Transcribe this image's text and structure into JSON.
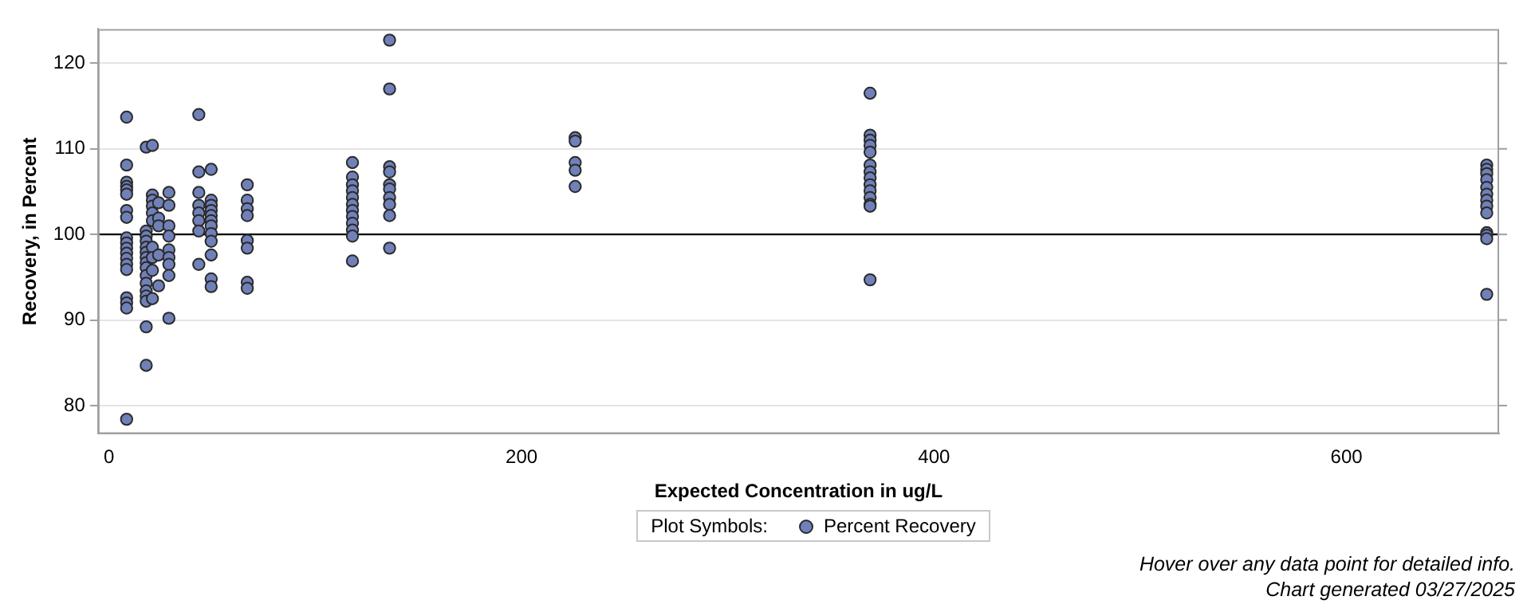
{
  "chart_data": {
    "type": "scatter",
    "xlabel": "Expected Concentration in ug/L",
    "ylabel": "Recovery, in Percent",
    "legend_title": "Plot Symbols:",
    "legend": "bottom",
    "grid": "y",
    "marker": "circle",
    "xlim": [
      -5.4,
      674
    ],
    "xticks": [
      0,
      200,
      400,
      600
    ],
    "ylim": [
      76.7,
      124
    ],
    "yticks": [
      80,
      90,
      100,
      110,
      120
    ],
    "ref_lines": [
      {
        "axis": "y",
        "value": 100,
        "label": null,
        "color": "#000000"
      }
    ],
    "annotations": [
      "Hover over any data point for detailed info.",
      "Chart generated 03/27/2025"
    ],
    "series": [
      {
        "name": "Percent Recovery",
        "color": "#7080b8",
        "x": [
          8.5,
          8.5,
          8.5,
          8.5,
          8.5,
          8.5,
          8.5,
          8.5,
          8.5,
          8.5,
          8.5,
          8.5,
          8.5,
          8.5,
          8.5,
          8.5,
          8.5,
          8.5,
          8.5,
          18,
          18,
          18,
          18,
          18,
          18,
          18,
          18,
          18,
          18,
          18,
          18,
          18,
          18,
          18,
          18,
          21,
          21,
          21,
          21,
          21,
          21,
          21,
          21,
          21,
          21,
          24,
          24,
          24,
          24,
          24,
          29,
          29,
          29,
          29,
          29,
          29,
          29,
          29,
          29,
          43.5,
          43.5,
          43.5,
          43.5,
          43.5,
          43.5,
          43.5,
          43.5,
          49.5,
          49.5,
          49.5,
          49.5,
          49.5,
          49.5,
          49.5,
          49.5,
          49.5,
          49.5,
          49.5,
          49.5,
          67,
          67,
          67,
          67,
          67,
          67,
          67,
          67,
          118,
          118,
          118,
          118,
          118,
          118,
          118,
          118,
          118,
          118,
          118,
          118,
          136,
          136,
          136,
          136,
          136,
          136,
          136,
          136,
          136,
          136,
          226,
          226,
          226,
          226,
          226,
          369,
          369,
          369,
          369,
          369,
          369,
          369,
          369,
          369,
          369,
          369,
          369,
          369,
          369,
          668,
          668,
          668,
          668,
          668,
          668,
          668,
          668,
          668,
          668,
          668,
          668,
          668
        ],
        "values": [
          113.7,
          108.1,
          106.1,
          105.6,
          105.2,
          104.7,
          102.8,
          102.0,
          99.6,
          99.0,
          98.4,
          97.8,
          97.2,
          96.5,
          95.9,
          92.6,
          92.0,
          91.4,
          78.4,
          110.2,
          100.4,
          99.8,
          99.2,
          98.5,
          97.9,
          97.3,
          96.7,
          96.1,
          95.2,
          94.3,
          93.4,
          92.8,
          92.2,
          89.2,
          84.7,
          110.4,
          104.6,
          104.0,
          103.3,
          102.5,
          101.6,
          98.5,
          97.3,
          95.8,
          92.5,
          103.7,
          101.9,
          101.0,
          97.6,
          94.0,
          104.9,
          103.4,
          101.0,
          99.8,
          98.2,
          97.3,
          96.5,
          95.2,
          90.2,
          114.0,
          107.3,
          104.9,
          103.4,
          102.5,
          101.6,
          100.4,
          96.5,
          107.6,
          104.0,
          103.4,
          102.8,
          102.2,
          101.6,
          101.0,
          100.1,
          99.2,
          97.6,
          94.8,
          93.9,
          105.8,
          104.0,
          103.0,
          102.2,
          99.3,
          98.4,
          94.4,
          93.7,
          108.4,
          106.7,
          105.8,
          105.1,
          104.3,
          103.5,
          102.8,
          102.1,
          101.3,
          100.5,
          99.8,
          96.9,
          122.7,
          117.0,
          107.9,
          107.3,
          105.8,
          105.3,
          104.3,
          103.5,
          102.2,
          98.4,
          111.3,
          110.9,
          108.4,
          107.5,
          105.6,
          116.5,
          111.6,
          111.0,
          110.4,
          109.6,
          108.1,
          107.3,
          106.6,
          105.8,
          105.1,
          104.3,
          103.5,
          103.3,
          94.7,
          108.1,
          107.6,
          107.1,
          106.4,
          105.5,
          104.7,
          104.0,
          103.3,
          102.5,
          100.2,
          99.9,
          99.5,
          93.0
        ]
      }
    ]
  }
}
